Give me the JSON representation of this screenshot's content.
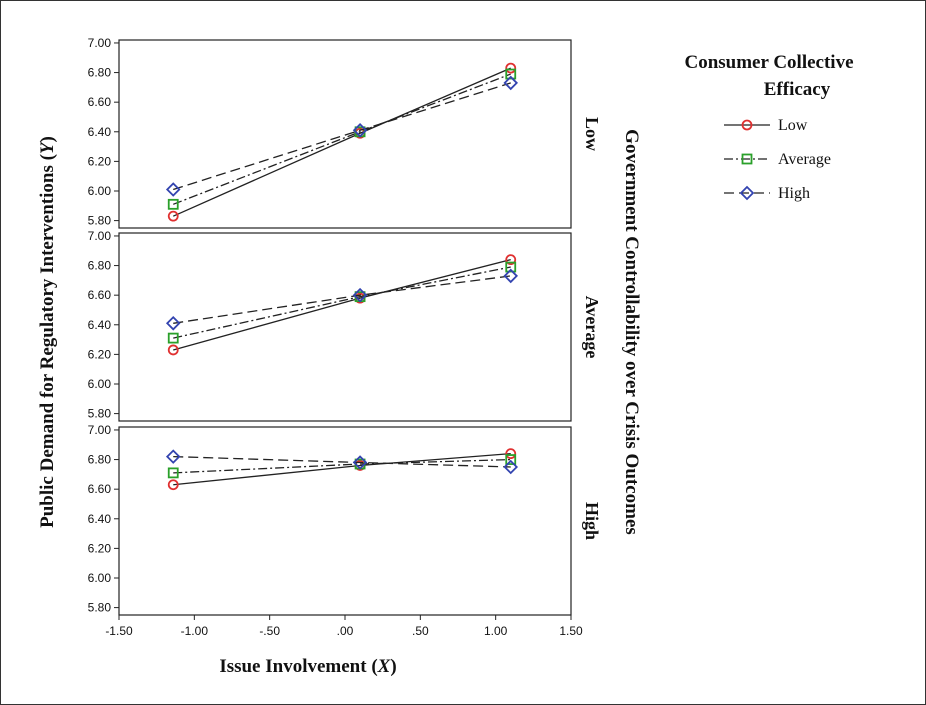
{
  "chart_data": {
    "type": "line",
    "xlabel": "Issue Involvement (X)",
    "ylabel": "Public Demand for Regulatory Interventions (Y)",
    "facet_label": "Government Controllability over Crisis Outcomes",
    "x_ticks": [
      "-1.50",
      "-1.00",
      "-.50",
      ".00",
      ".50",
      "1.00",
      "1.50"
    ],
    "y_ticks": [
      "5.80",
      "6.00",
      "6.20",
      "6.40",
      "6.60",
      "6.80",
      "7.00"
    ],
    "xlim": [
      -1.5,
      1.5
    ],
    "ylim": [
      5.75,
      7.02
    ],
    "legend": {
      "title_line1": "Consumer Collective",
      "title_line2": "Efficacy",
      "position": "right"
    },
    "series_styles": [
      {
        "name": "Low",
        "color": "#e03030",
        "marker": "circle",
        "dash": ""
      },
      {
        "name": "Average",
        "color": "#2aa02a",
        "marker": "square",
        "dash": "9 3 2 3"
      },
      {
        "name": "High",
        "color": "#3344b0",
        "marker": "diamond",
        "dash": "10 5"
      }
    ],
    "panels": [
      {
        "label": "Low",
        "x": [
          -1.14,
          0.1,
          1.1
        ],
        "series": [
          {
            "name": "Low",
            "values": [
              5.83,
              6.39,
              6.83
            ]
          },
          {
            "name": "Average",
            "values": [
              5.91,
              6.4,
              6.79
            ]
          },
          {
            "name": "High",
            "values": [
              6.01,
              6.41,
              6.73
            ]
          }
        ]
      },
      {
        "label": "Average",
        "x": [
          -1.14,
          0.1,
          1.1
        ],
        "series": [
          {
            "name": "Low",
            "values": [
              6.23,
              6.58,
              6.84
            ]
          },
          {
            "name": "Average",
            "values": [
              6.31,
              6.59,
              6.79
            ]
          },
          {
            "name": "High",
            "values": [
              6.41,
              6.6,
              6.73
            ]
          }
        ]
      },
      {
        "label": "High",
        "x": [
          -1.14,
          0.1,
          1.1
        ],
        "series": [
          {
            "name": "Low",
            "values": [
              6.63,
              6.76,
              6.84
            ]
          },
          {
            "name": "Average",
            "values": [
              6.71,
              6.77,
              6.8
            ]
          },
          {
            "name": "High",
            "values": [
              6.82,
              6.78,
              6.75
            ]
          }
        ]
      }
    ]
  }
}
